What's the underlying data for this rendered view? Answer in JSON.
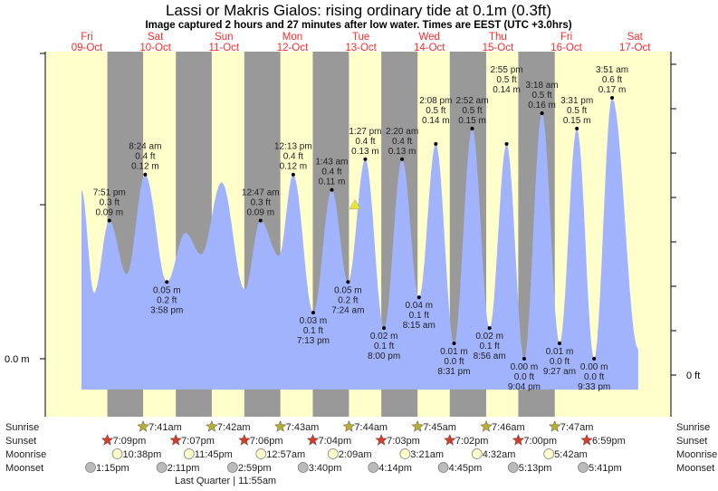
{
  "chart_data": {
    "type": "area",
    "title": "Lassi or Makris Gialos: rising  ordinary tide at 0.1m (0.3ft)",
    "subtitle": "Image captured 2 hours and 27 minutes after low water. Times are EEST (UTC +3.0hrs)",
    "days": [
      {
        "dow": "Fri",
        "date": "09-Oct"
      },
      {
        "dow": "Sat",
        "date": "10-Oct"
      },
      {
        "dow": "Sun",
        "date": "11-Oct"
      },
      {
        "dow": "Mon",
        "date": "12-Oct"
      },
      {
        "dow": "Tue",
        "date": "13-Oct"
      },
      {
        "dow": "Wed",
        "date": "14-Oct"
      },
      {
        "dow": "Thu",
        "date": "15-Oct"
      },
      {
        "dow": "Fri",
        "date": "16-Oct"
      },
      {
        "dow": "Sat",
        "date": "17-Oct"
      }
    ],
    "y_left_label": "0.0 m",
    "y_right_label": "0 ft",
    "colors": {
      "water": "#a0b3fc",
      "day": "#ffffcc",
      "night": "#999999",
      "marker": "#e6e633",
      "sunrise": "#b8ad2e",
      "sunset": "#d23c28",
      "moonrise": "#ffffcc",
      "moonset": "#bbbbbb"
    },
    "current": {
      "hours_from_start": 105.85,
      "m": 0.1
    },
    "extremes": [
      {
        "h": 10.1,
        "m": 0.11,
        "labeled": false
      },
      {
        "h": 14.5,
        "m": 0.043,
        "labeled": false
      },
      {
        "h": 19.85,
        "m": 0.09,
        "type": "high",
        "time": "7:51 pm",
        "ft": "0.3 ft",
        "ms": "0.09 m"
      },
      {
        "h": 25.9,
        "m": 0.055,
        "labeled": false
      },
      {
        "h": 32.4,
        "m": 0.12,
        "type": "high",
        "time": "8:24 am",
        "ft": "0.4 ft",
        "ms": "0.12 m"
      },
      {
        "h": 39.97,
        "m": 0.05,
        "type": "low",
        "time": "3:58 pm",
        "ft": "0.2 ft",
        "ms": "0.05 m"
      },
      {
        "h": 46.5,
        "m": 0.082,
        "labeled": false
      },
      {
        "h": 52.0,
        "m": 0.068,
        "labeled": false
      },
      {
        "h": 59.2,
        "m": 0.115,
        "labeled": false
      },
      {
        "h": 67.2,
        "m": 0.045,
        "labeled": false
      },
      {
        "h": 72.78,
        "m": 0.09,
        "type": "high",
        "time": "12:47 am",
        "ft": "0.3 ft",
        "ms": "0.09 m"
      },
      {
        "h": 79.2,
        "m": 0.067,
        "labeled": false
      },
      {
        "h": 84.22,
        "m": 0.12,
        "type": "high",
        "time": "12:13 pm",
        "ft": "0.4 ft",
        "ms": "0.12 m"
      },
      {
        "h": 91.22,
        "m": 0.03,
        "type": "low",
        "time": "7:13 pm",
        "ft": "0.1 ft",
        "ms": "0.03 m"
      },
      {
        "h": 97.72,
        "m": 0.11,
        "type": "high",
        "time": "1:43 am",
        "ft": "0.4 ft",
        "ms": "0.11 m"
      },
      {
        "h": 103.4,
        "m": 0.05,
        "type": "low",
        "time": "7:24 am",
        "ft": "0.2 ft",
        "ms": "0.05 m"
      },
      {
        "h": 109.45,
        "m": 0.13,
        "type": "high",
        "time": "1:27 pm",
        "ft": "0.4 ft",
        "ms": "0.13 m"
      },
      {
        "h": 116.0,
        "m": 0.02,
        "type": "low",
        "time": "8:00 pm",
        "ft": "0.1 ft",
        "ms": "0.02 m"
      },
      {
        "h": 122.33,
        "m": 0.13,
        "type": "high",
        "time": "2:20 am",
        "ft": "0.4 ft",
        "ms": "0.13 m"
      },
      {
        "h": 128.25,
        "m": 0.04,
        "type": "low",
        "time": "8:15 am",
        "ft": "0.1 ft",
        "ms": "0.04 m"
      },
      {
        "h": 134.13,
        "m": 0.14,
        "type": "high",
        "time": "2:08 pm",
        "ft": "0.5 ft",
        "ms": "0.14 m"
      },
      {
        "h": 140.52,
        "m": 0.01,
        "type": "low",
        "time": "8:31 pm",
        "ft": "0.0 ft",
        "ms": "0.01 m"
      },
      {
        "h": 146.87,
        "m": 0.15,
        "type": "high",
        "time": "2:52 am",
        "ft": "0.5 ft",
        "ms": "0.15 m"
      },
      {
        "h": 152.93,
        "m": 0.02,
        "type": "low",
        "time": "8:56 am",
        "ft": "0.1 ft",
        "ms": "0.02 m"
      },
      {
        "h": 158.92,
        "m": 0.14,
        "type": "high",
        "time": "2:55 pm",
        "ft": "0.5 ft",
        "ms": "0.14 m"
      },
      {
        "h": 165.07,
        "m": 0.0,
        "type": "low",
        "time": "9:04 pm",
        "ft": "0.0 ft",
        "ms": "0.00 m"
      },
      {
        "h": 171.3,
        "m": 0.16,
        "type": "high",
        "time": "3:18 am",
        "ft": "0.5 ft",
        "ms": "0.16 m"
      },
      {
        "h": 177.45,
        "m": 0.01,
        "type": "low",
        "time": "9:27 am",
        "ft": "0.0 ft",
        "ms": "0.01 m"
      },
      {
        "h": 183.52,
        "m": 0.15,
        "type": "high",
        "time": "3:31 pm",
        "ft": "0.5 ft",
        "ms": "0.15 m"
      },
      {
        "h": 189.55,
        "m": 0.0,
        "type": "low",
        "time": "9:33 pm",
        "ft": "0.0 ft",
        "ms": "0.00 m"
      },
      {
        "h": 195.85,
        "m": 0.17,
        "type": "high",
        "time": "3:51 am",
        "ft": "0.6 ft",
        "ms": "0.17 m"
      },
      {
        "h": 205.0,
        "m": 0.006,
        "labeled": false
      }
    ],
    "rows": {
      "labels": {
        "sunrise": "Sunrise",
        "sunset": "Sunset",
        "moonrise": "Moonrise",
        "moonset": "Moonset"
      },
      "sunrise": [
        {
          "h": 31.68,
          "t": "7:41am"
        },
        {
          "h": 55.7,
          "t": "7:42am"
        },
        {
          "h": 79.72,
          "t": "7:43am"
        },
        {
          "h": 103.73,
          "t": "7:44am"
        },
        {
          "h": 127.75,
          "t": "7:45am"
        },
        {
          "h": 151.77,
          "t": "7:46am"
        },
        {
          "h": 175.78,
          "t": "7:47am"
        }
      ],
      "sunset": [
        {
          "h": 19.15,
          "t": "7:09pm"
        },
        {
          "h": 43.12,
          "t": "7:07pm"
        },
        {
          "h": 67.1,
          "t": "7:06pm"
        },
        {
          "h": 91.07,
          "t": "7:04pm"
        },
        {
          "h": 115.05,
          "t": "7:03pm"
        },
        {
          "h": 139.03,
          "t": "7:02pm"
        },
        {
          "h": 163.0,
          "t": "7:00pm"
        },
        {
          "h": 186.98,
          "t": "6:59pm"
        }
      ],
      "moonrise": [
        {
          "h": 22.63,
          "t": "10:38pm"
        },
        {
          "h": 47.75,
          "t": "11:45pm"
        },
        {
          "h": 72.95,
          "t": "12:57am"
        },
        {
          "h": 98.15,
          "t": "2:09am"
        },
        {
          "h": 123.35,
          "t": "3:21am"
        },
        {
          "h": 148.53,
          "t": "4:32am"
        },
        {
          "h": 173.7,
          "t": "5:42am"
        }
      ],
      "moonset": [
        {
          "h": 13.25,
          "t": "1:15pm"
        },
        {
          "h": 38.18,
          "t": "2:11pm"
        },
        {
          "h": 62.98,
          "t": "2:59pm"
        },
        {
          "h": 87.67,
          "t": "3:40pm"
        },
        {
          "h": 112.23,
          "t": "4:14pm"
        },
        {
          "h": 136.75,
          "t": "4:45pm"
        },
        {
          "h": 161.22,
          "t": "5:13pm"
        },
        {
          "h": 185.68,
          "t": "5:41pm"
        }
      ]
    },
    "moon_phase": "Last Quarter | 11:55am"
  }
}
